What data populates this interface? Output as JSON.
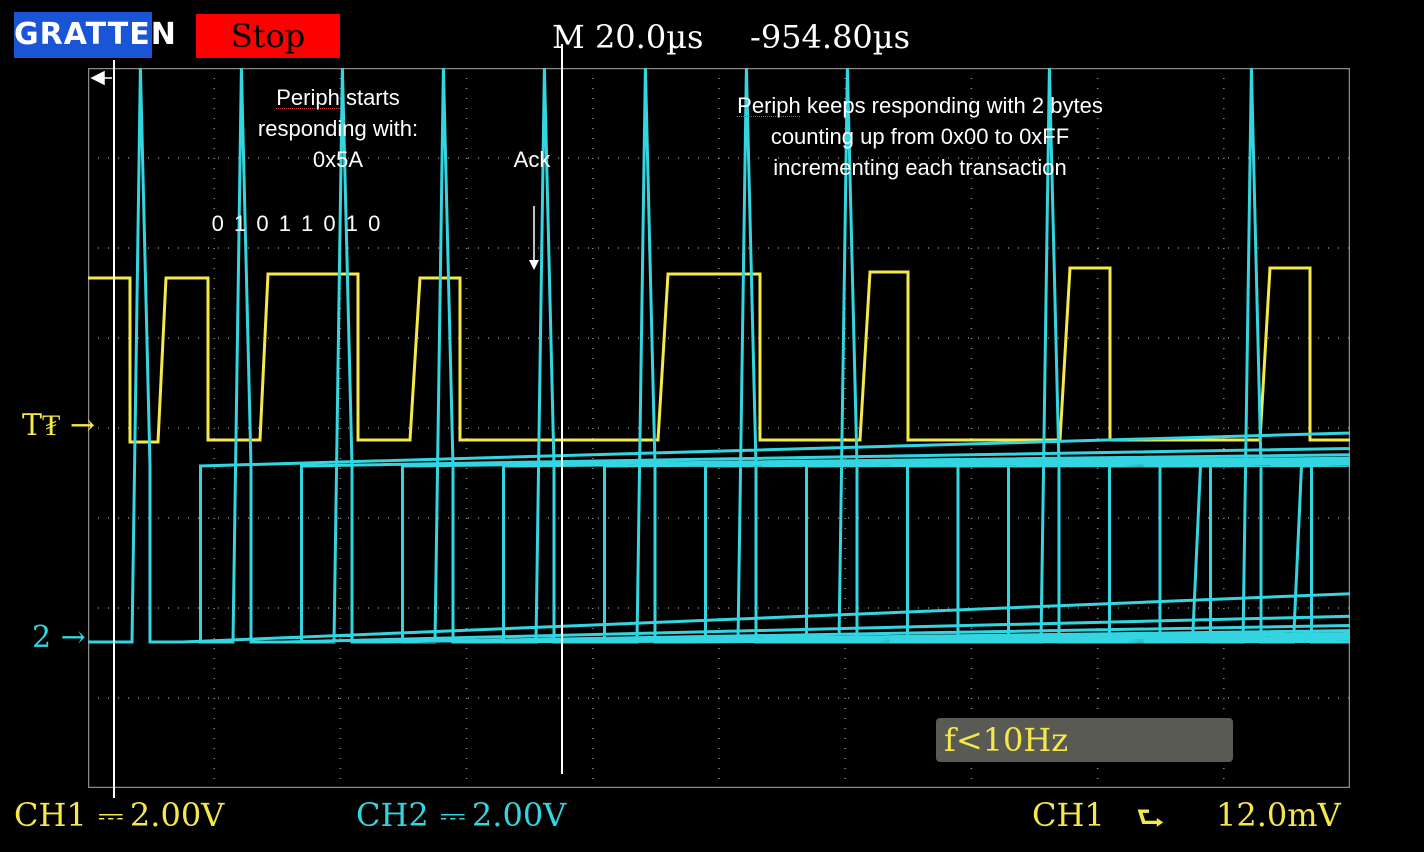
{
  "header": {
    "brand": "GRATTEN",
    "run_state": "Stop",
    "timebase": "M  20.0µs",
    "offset": "-954.80µs"
  },
  "annotations": {
    "start_line1": "Periph",
    "start_line1b": " starts",
    "start_line2": "responding with:",
    "start_line3": "0x5A",
    "bits": "0 1 0 1 1 0 1 0",
    "ack": "Ack",
    "keep_line1a": "Periph",
    "keep_line1b": " keeps responding with 2 bytes",
    "keep_line2": "counting up from 0x00 to 0xFF",
    "keep_line3": "incrementing each transaction"
  },
  "markers": {
    "ch1_marker": "T₮ →",
    "ch2_marker": "2 →"
  },
  "trigger": {
    "freq_readout": "f<10Hz"
  },
  "footer": {
    "ch1_label": "CH1",
    "ch1_scale": "⎓ 2.00V",
    "ch2_label": "CH2",
    "ch2_scale": "⎓ 2.00V",
    "trig_source": "CH1",
    "trig_edge": "⮑",
    "trig_level": "12.0mV"
  },
  "colors": {
    "ch1": "#f5e84a",
    "ch2": "#33d6e0",
    "grid": "#8a8a8a"
  }
}
